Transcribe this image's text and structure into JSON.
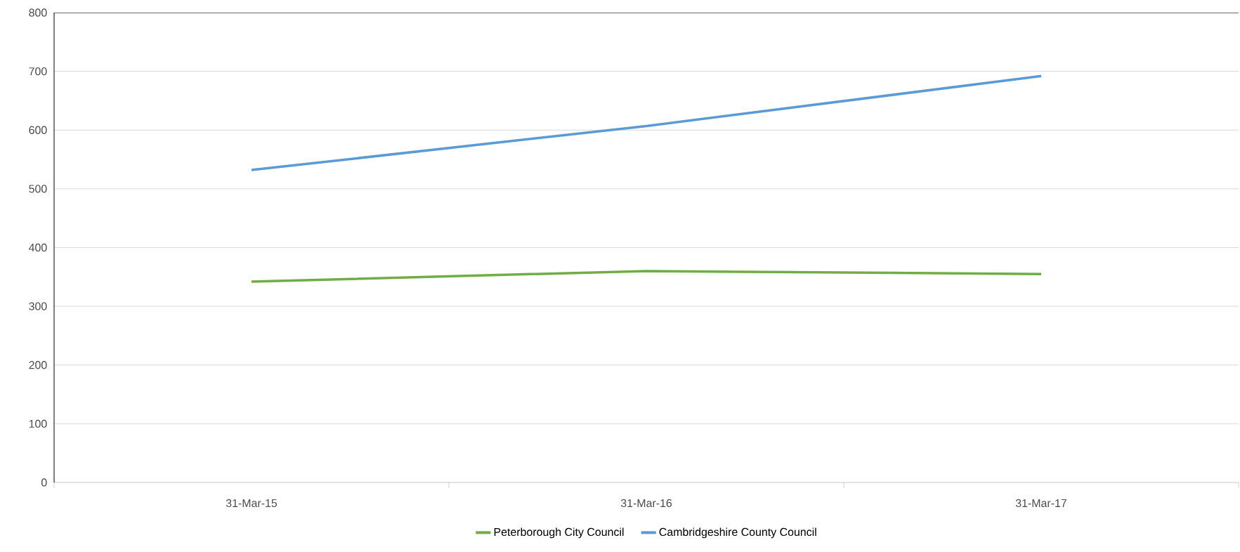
{
  "chart_data": {
    "type": "line",
    "categories": [
      "31-Mar-15",
      "31-Mar-16",
      "31-Mar-17"
    ],
    "series": [
      {
        "name": "Peterborough City Council",
        "color": "#70ad47",
        "values": [
          342,
          360,
          355
        ]
      },
      {
        "name": "Cambridgeshire County Council",
        "color": "#5b9bd5",
        "values": [
          532,
          607,
          692
        ]
      }
    ],
    "ylim": [
      0,
      800
    ],
    "yticks": [
      0,
      100,
      200,
      300,
      400,
      500,
      600,
      700,
      800
    ],
    "grid": "y",
    "legend": "bottom",
    "marker": "none",
    "line_style": "solid"
  }
}
